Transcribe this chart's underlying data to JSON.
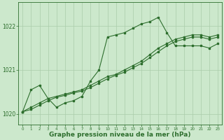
{
  "bg_color": "#cce8cc",
  "grid_color": "#aaccaa",
  "line_color": "#2d6e2d",
  "marker_color": "#2d6e2d",
  "xlabel": "Graphe pression niveau de la mer (hPa)",
  "xlabel_fontsize": 6.5,
  "xlim": [
    -0.5,
    23.5
  ],
  "ylim": [
    1019.75,
    1022.55
  ],
  "yticks": [
    1020,
    1021,
    1022
  ],
  "xticks": [
    0,
    1,
    2,
    3,
    4,
    5,
    6,
    7,
    8,
    9,
    10,
    11,
    12,
    13,
    14,
    15,
    16,
    17,
    18,
    19,
    20,
    21,
    22,
    23
  ],
  "series1_x": [
    0,
    1,
    2,
    3,
    4,
    5,
    6,
    7,
    8,
    9,
    10,
    11,
    12,
    13,
    14,
    15,
    16,
    17,
    18,
    19,
    20,
    21,
    22,
    23
  ],
  "series1_y": [
    1020.05,
    1020.55,
    1020.65,
    1020.35,
    1020.15,
    1020.25,
    1020.3,
    1020.4,
    1020.75,
    1021.0,
    1021.75,
    1021.8,
    1021.85,
    1021.95,
    1022.05,
    1022.1,
    1022.2,
    1021.85,
    1021.55,
    1021.55,
    1021.55,
    1021.55,
    1021.5,
    1021.6
  ],
  "series2_x": [
    0,
    1,
    2,
    3,
    4,
    5,
    6,
    7,
    8,
    9,
    10,
    11,
    12,
    13,
    14,
    15,
    16,
    17,
    18,
    19,
    20,
    21,
    22,
    23
  ],
  "series2_y": [
    1020.05,
    1020.15,
    1020.25,
    1020.35,
    1020.4,
    1020.45,
    1020.5,
    1020.55,
    1020.65,
    1020.75,
    1020.85,
    1020.9,
    1021.0,
    1021.1,
    1021.2,
    1021.35,
    1021.5,
    1021.6,
    1021.7,
    1021.75,
    1021.8,
    1021.8,
    1021.75,
    1021.8
  ],
  "series3_x": [
    0,
    1,
    2,
    3,
    4,
    5,
    6,
    7,
    8,
    9,
    10,
    11,
    12,
    13,
    14,
    15,
    16,
    17,
    18,
    19,
    20,
    21,
    22,
    23
  ],
  "series3_y": [
    1020.05,
    1020.1,
    1020.2,
    1020.3,
    1020.38,
    1020.42,
    1020.48,
    1020.52,
    1020.6,
    1020.7,
    1020.8,
    1020.88,
    1020.95,
    1021.05,
    1021.15,
    1021.28,
    1021.42,
    1021.55,
    1021.65,
    1021.7,
    1021.75,
    1021.75,
    1021.7,
    1021.75
  ]
}
